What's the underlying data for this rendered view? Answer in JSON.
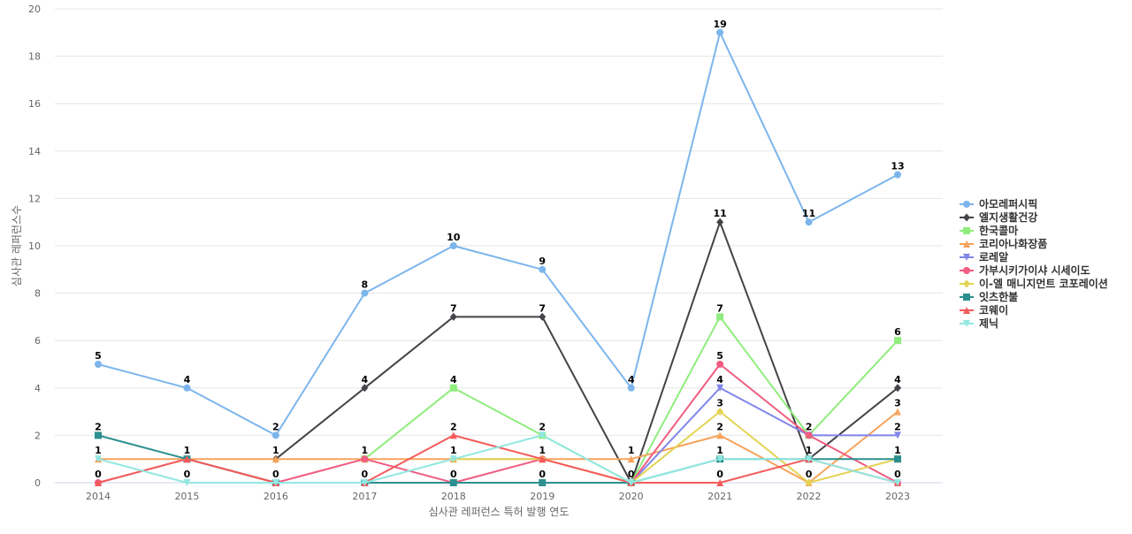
{
  "chart_data": {
    "type": "line",
    "title": "",
    "xlabel": "심사관 레퍼런스 특허 발행 연도",
    "ylabel": "심사관 레퍼런스수",
    "ylim": [
      0,
      20
    ],
    "yticks": [
      0,
      2,
      4,
      6,
      8,
      10,
      12,
      14,
      16,
      18,
      20
    ],
    "grid": true,
    "legend_position": "right",
    "x": [
      "2014",
      "2015",
      "2016",
      "2017",
      "2018",
      "2019",
      "2020",
      "2021",
      "2022",
      "2023"
    ],
    "series": [
      {
        "name": "아모레퍼시픽",
        "color": "#7cb5ec",
        "marker": "circle",
        "values": [
          5,
          4,
          2,
          8,
          10,
          9,
          4,
          19,
          11,
          13
        ],
        "labels": true
      },
      {
        "name": "엘지생활건강",
        "color": "#434348",
        "marker": "diamond",
        "values": [
          null,
          null,
          1,
          4,
          7,
          7,
          0,
          11,
          1,
          4
        ],
        "labels": true
      },
      {
        "name": "한국콜마",
        "color": "#90ed7d",
        "marker": "square",
        "values": [
          null,
          null,
          null,
          1,
          4,
          2,
          0,
          7,
          2,
          6
        ],
        "labels": true
      },
      {
        "name": "코리아나화장품",
        "color": "#f7a35c",
        "marker": "triangle",
        "values": [
          1,
          1,
          1,
          1,
          1,
          1,
          1,
          2,
          0,
          3
        ],
        "labels": true
      },
      {
        "name": "로레알",
        "color": "#8085e9",
        "marker": "triangle-down",
        "values": [
          null,
          null,
          null,
          null,
          null,
          null,
          0,
          4,
          2,
          2
        ],
        "labels": true
      },
      {
        "name": "가부시키가이샤 시세이도",
        "color": "#f15c80",
        "marker": "circle",
        "values": [
          0,
          1,
          0,
          1,
          0,
          1,
          0,
          5,
          2,
          0
        ],
        "labels": true
      },
      {
        "name": "이-엘 매니지먼트 코포레이션",
        "color": "#e4d354",
        "marker": "diamond",
        "values": [
          null,
          null,
          null,
          null,
          1,
          1,
          0,
          3,
          0,
          1
        ],
        "labels": true
      },
      {
        "name": "잇츠한불",
        "color": "#2b908f",
        "marker": "square",
        "values": [
          2,
          1,
          0,
          0,
          0,
          0,
          0,
          1,
          1,
          1
        ],
        "labels": true
      },
      {
        "name": "코웨이",
        "color": "#f45b5b",
        "marker": "triangle",
        "values": [
          0,
          1,
          0,
          0,
          2,
          1,
          0,
          0,
          1,
          0
        ],
        "labels": true
      },
      {
        "name": "제닉",
        "color": "#91e8e1",
        "marker": "triangle-down",
        "values": [
          1,
          0,
          0,
          0,
          1,
          2,
          0,
          1,
          1,
          0
        ],
        "labels": true
      }
    ]
  }
}
